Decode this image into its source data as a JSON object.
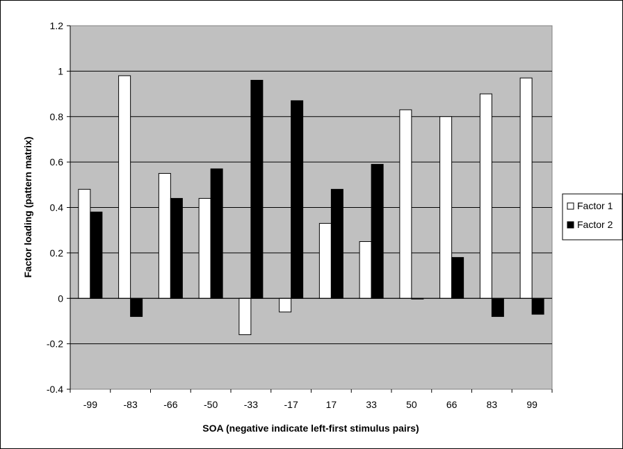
{
  "chart_data": {
    "type": "bar",
    "categories": [
      "-99",
      "-83",
      "-66",
      "-50",
      "-33",
      "-17",
      "17",
      "33",
      "50",
      "66",
      "83",
      "99"
    ],
    "series": [
      {
        "name": "Factor 1",
        "color": "#ffffff",
        "values": [
          0.48,
          0.98,
          0.55,
          0.44,
          -0.16,
          -0.06,
          0.33,
          0.25,
          0.83,
          0.8,
          0.9,
          0.97
        ]
      },
      {
        "name": "Factor 2",
        "color": "#000000",
        "values": [
          0.38,
          -0.08,
          0.44,
          0.57,
          0.96,
          0.87,
          0.48,
          0.59,
          0.0,
          0.18,
          -0.08,
          -0.07
        ]
      }
    ],
    "xlabel": "SOA (negative indicate left-first stimulus pairs)",
    "ylabel": "Factor loading (pattern matrix)",
    "ylim": [
      -0.4,
      1.2
    ],
    "yticks": [
      "-0.4",
      "-0.2",
      "0",
      "0.2",
      "0.4",
      "0.6",
      "0.8",
      "1",
      "1.2"
    ],
    "grid": true,
    "plot_background": "#c0c0c0",
    "legend_position": "right"
  }
}
